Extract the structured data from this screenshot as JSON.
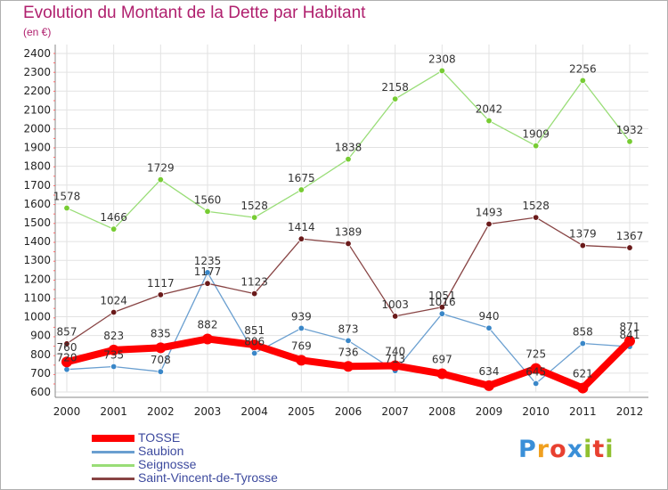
{
  "title": "Evolution du Montant de la Dette par Habitant",
  "subtitle": "(en €)",
  "logo": {
    "text": "Proxiti",
    "letter_colors": [
      "#3a8fd8",
      "#f0a020",
      "#e84030",
      "#3a8fd8",
      "#90c030",
      "#e84030",
      "#90c030"
    ]
  },
  "chart_data": {
    "type": "line",
    "title": "Evolution du Montant de la Dette par Habitant",
    "ylabel": "(en €)",
    "xlabel": "",
    "x": [
      "2000",
      "2001",
      "2002",
      "2003",
      "2004",
      "2005",
      "2006",
      "2007",
      "2008",
      "2009",
      "2010",
      "2011",
      "2012"
    ],
    "ylim": [
      600,
      2400
    ],
    "yticks": [
      "600",
      "700",
      "800",
      "900",
      "1000",
      "1100",
      "1200",
      "1300",
      "1400",
      "1500",
      "1600",
      "1700",
      "1800",
      "1900",
      "2000",
      "2100",
      "2200",
      "2300",
      "2400"
    ],
    "grid": true,
    "legend_position": "bottom-left",
    "series": [
      {
        "name": "TOSSE",
        "color": "#ff0000",
        "marker_color": "#ff0000",
        "emphasis": true,
        "values": [
          760,
          823,
          835,
          882,
          851,
          769,
          736,
          740,
          697,
          634,
          725,
          621,
          871
        ],
        "labels": [
          "760",
          "823",
          "835",
          "882",
          "851",
          "769",
          "736",
          "740",
          "697",
          "634",
          "725",
          "621",
          "871"
        ]
      },
      {
        "name": "Saubion",
        "color": "#6a9fd0",
        "marker_color": "#3a87c8",
        "emphasis": false,
        "values": [
          720,
          735,
          708,
          1235,
          806,
          939,
          873,
          713,
          1016,
          940,
          645,
          858,
          841
        ],
        "labels": [
          "720",
          "735",
          "708",
          "1235",
          "806",
          "939",
          "873",
          "713",
          "1016",
          "940",
          "645",
          "858",
          "841"
        ]
      },
      {
        "name": "Seignosse",
        "color": "#99dd77",
        "marker_color": "#77cc33",
        "emphasis": false,
        "values": [
          1578,
          1466,
          1729,
          1560,
          1528,
          1675,
          1838,
          2158,
          2308,
          2042,
          1909,
          2256,
          1932
        ],
        "labels": [
          "1578",
          "1466",
          "1729",
          "1560",
          "1528",
          "1675",
          "1838",
          "2158",
          "2308",
          "2042",
          "1909",
          "2256",
          "1932"
        ]
      },
      {
        "name": "Saint-Vincent-de-Tyrosse",
        "color": "#884444",
        "marker_color": "#6a1a1a",
        "emphasis": false,
        "values": [
          857,
          1024,
          1117,
          1177,
          1123,
          1414,
          1389,
          1003,
          1051,
          1493,
          1528,
          1379,
          1367
        ],
        "labels": [
          "857",
          "1024",
          "1117",
          "1177",
          "1123",
          "1414",
          "1389",
          "1003",
          "1051",
          "1493",
          "1528",
          "1379",
          "1367"
        ]
      }
    ]
  }
}
